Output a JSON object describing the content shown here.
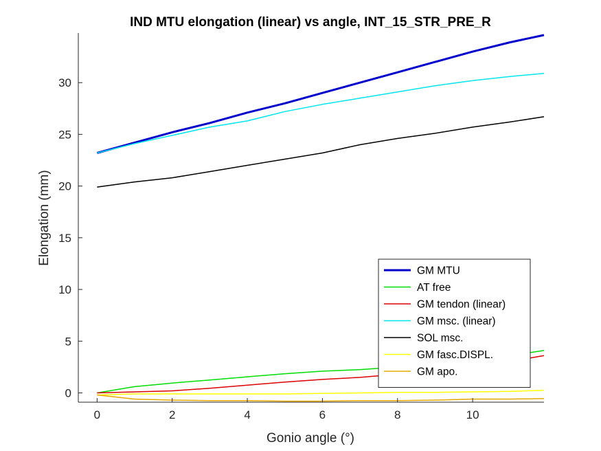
{
  "chart_data": {
    "type": "line",
    "title": "IND MTU elongation (linear) vs angle, INT_15_STR_PRE_R",
    "xlabel": "Gonio angle (°)",
    "ylabel": "Elongation (mm)",
    "xlim": [
      -0.5,
      11.9
    ],
    "ylim": [
      -0.9,
      34.8
    ],
    "xticks": [
      0,
      2,
      4,
      6,
      8,
      10
    ],
    "yticks": [
      0,
      5,
      10,
      15,
      20,
      25,
      30
    ],
    "grid": false,
    "legend_position": "bottom-right",
    "x": [
      0,
      1,
      2,
      3,
      4,
      5,
      6,
      7,
      8,
      9,
      10,
      11,
      11.9
    ],
    "series": [
      {
        "name": "GM MTU",
        "color": "#0000cd",
        "width": 3,
        "values": [
          23.2,
          24.2,
          25.2,
          26.1,
          27.1,
          28.0,
          29.0,
          30.0,
          31.0,
          32.0,
          33.0,
          33.9,
          34.6
        ]
      },
      {
        "name": "AT free",
        "color": "#00dd00",
        "width": 1.5,
        "values": [
          0,
          0.6,
          0.95,
          1.25,
          1.55,
          1.85,
          2.1,
          2.25,
          2.5,
          2.8,
          3.15,
          3.6,
          4.1
        ]
      },
      {
        "name": "GM tendon (linear)",
        "color": "#dd0000",
        "width": 1.5,
        "values": [
          0,
          0.1,
          0.2,
          0.45,
          0.75,
          1.05,
          1.3,
          1.5,
          1.8,
          2.05,
          2.45,
          3.05,
          3.6
        ]
      },
      {
        "name": "GM msc. (linear)",
        "color": "#00e5ee",
        "width": 1.5,
        "values": [
          23.2,
          24.1,
          24.9,
          25.7,
          26.3,
          27.2,
          27.9,
          28.5,
          29.1,
          29.7,
          30.2,
          30.6,
          30.9
        ]
      },
      {
        "name": "SOL msc.",
        "color": "#000000",
        "width": 1.5,
        "values": [
          19.9,
          20.4,
          20.8,
          21.4,
          22.0,
          22.6,
          23.2,
          24.0,
          24.6,
          25.1,
          25.7,
          26.2,
          26.7
        ]
      },
      {
        "name": "GM fasc.DISPL.",
        "color": "#ffff00",
        "width": 1.5,
        "values": [
          -0.2,
          -0.1,
          -0.1,
          -0.1,
          -0.1,
          -0.1,
          -0.05,
          0,
          0.05,
          0.05,
          0.1,
          0.15,
          0.25
        ]
      },
      {
        "name": "GM apo.",
        "color": "#e6a800",
        "width": 1.5,
        "values": [
          -0.2,
          -0.6,
          -0.7,
          -0.75,
          -0.75,
          -0.8,
          -0.8,
          -0.75,
          -0.75,
          -0.7,
          -0.6,
          -0.6,
          -0.55
        ]
      }
    ]
  }
}
